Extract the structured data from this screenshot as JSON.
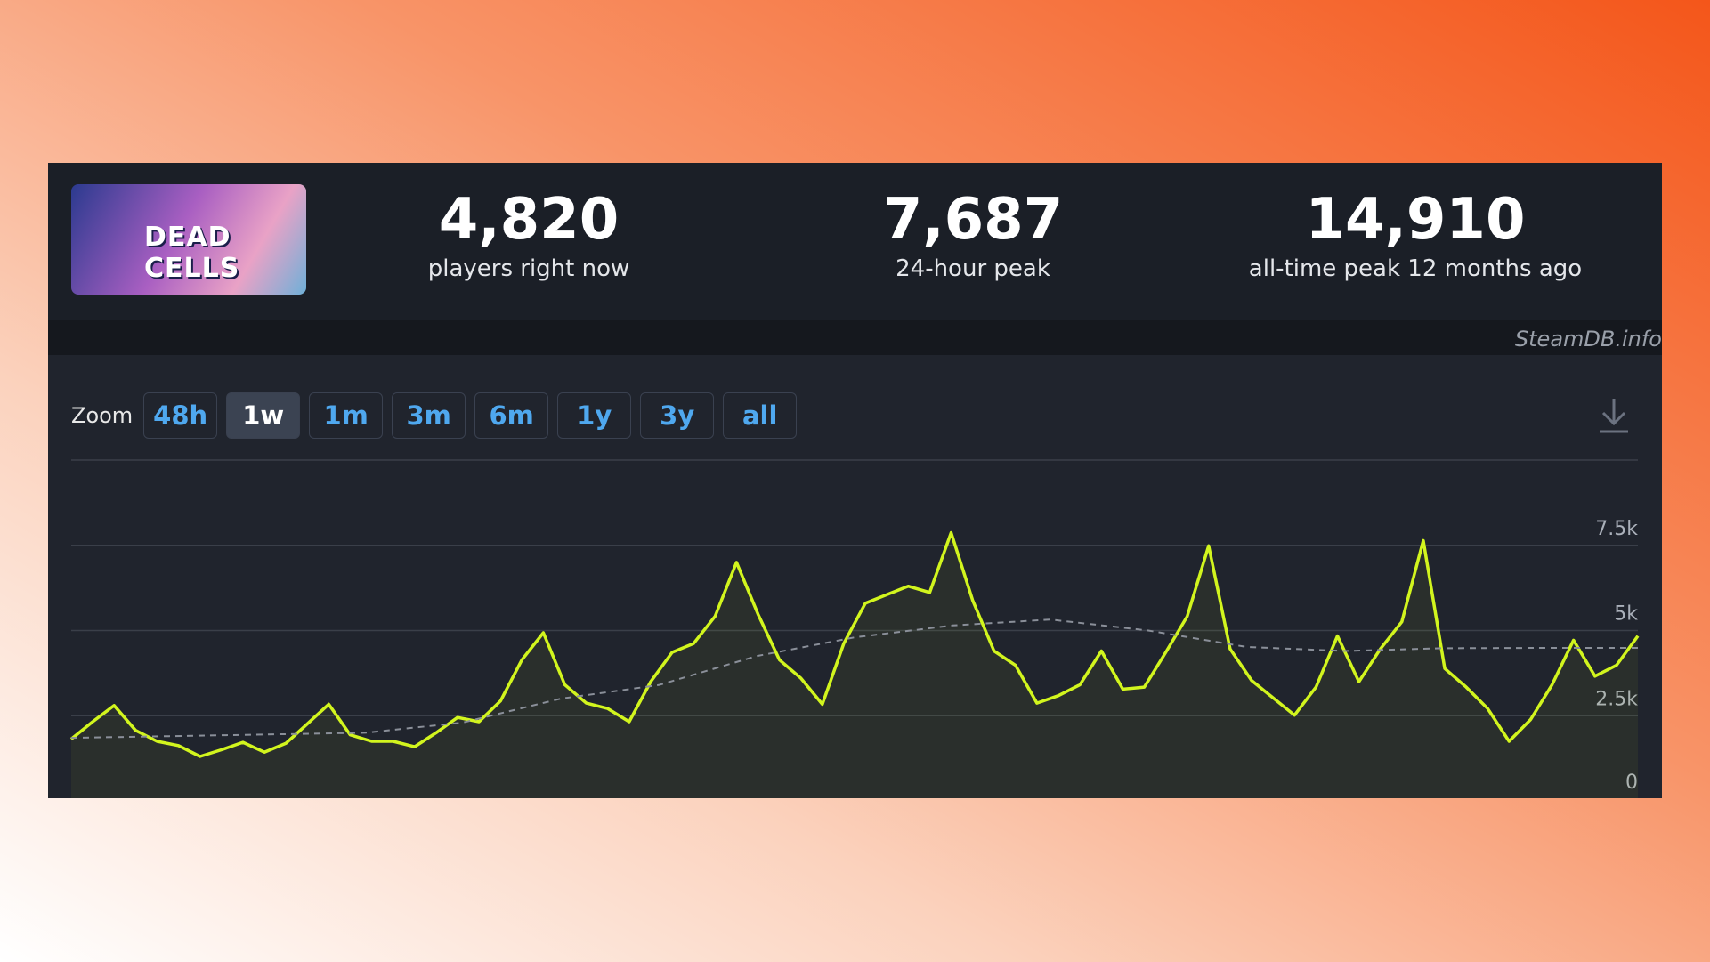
{
  "logo_text": "DEAD CELLS",
  "stats": [
    {
      "value": "4,820",
      "label": "players right now"
    },
    {
      "value": "7,687",
      "label": "24-hour peak"
    },
    {
      "value": "14,910",
      "label": "all-time peak 12 months ago"
    }
  ],
  "watermark": "SteamDB.info",
  "zoom": {
    "label": "Zoom",
    "buttons": [
      "48h",
      "1w",
      "1m",
      "3m",
      "6m",
      "1y",
      "3y",
      "all"
    ],
    "active": 1
  },
  "chart_data": {
    "type": "line",
    "ylim": [
      0,
      10000
    ],
    "yticks": [
      0,
      {
        "value": 2500,
        "label": "2.5k"
      },
      {
        "value": 5000,
        "label": "5k"
      },
      {
        "value": 7500,
        "label": "7.5k"
      }
    ],
    "grid": true,
    "series": [
      {
        "color": "#d2f51e",
        "fill": true,
        "values": [
          1815,
          2325,
          2800,
          2070,
          1750,
          1625,
          1305,
          1500,
          1720,
          1430,
          1690,
          2260,
          2835,
          1940,
          1750,
          1750,
          1590,
          2000,
          2450,
          2325,
          2930,
          4140,
          4935,
          3410,
          2870,
          2710,
          2325,
          3500,
          4360,
          4620,
          5415,
          7000,
          5480,
          4140,
          3600,
          2835,
          4620,
          5800,
          6050,
          6300,
          6115,
          7870,
          5890,
          4400,
          3980,
          2870,
          3090,
          3410,
          4400,
          3280,
          3340,
          4360,
          5415,
          7485,
          4460,
          3535,
          3025,
          2515,
          3340,
          4840,
          3500,
          4460,
          5255,
          7640,
          3885,
          3340,
          2710,
          1750,
          2390,
          3410,
          4715,
          3660,
          3980,
          4840
        ]
      },
      {
        "color": "#8a8f99",
        "dash": true,
        "values": [
          1850,
          1900,
          1950,
          2000,
          2300,
          3000,
          3400,
          4250,
          4800,
          5150,
          5320,
          5000,
          4520,
          4400,
          4480,
          4490,
          4490
        ]
      }
    ]
  }
}
